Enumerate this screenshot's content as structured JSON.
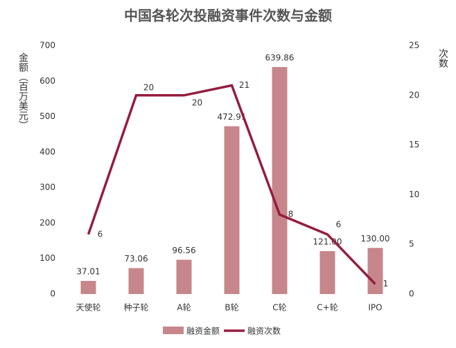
{
  "chart_data": {
    "type": "bar_line",
    "title": "中国各轮次投融资事件次数与金额",
    "y_label": "金额（百万美元）",
    "y2_label": "次数",
    "categories": [
      "天使轮",
      "种子轮",
      "A轮",
      "B轮",
      "C轮",
      "C+轮",
      "IPO"
    ],
    "series": [
      {
        "name": "融资金额",
        "type": "bar",
        "color": "#c7868b",
        "values": [
          37.01,
          73.06,
          96.56,
          472.91,
          639.86,
          121.0,
          130.0
        ],
        "value_labels": [
          "37.01",
          "73.06",
          "96.56",
          "472.91",
          "639.86",
          "121.00",
          "130.00"
        ]
      },
      {
        "name": "融资次数",
        "type": "line",
        "axis": "y2",
        "color": "#951d3f",
        "values": [
          6,
          20,
          20,
          21,
          8,
          6,
          1
        ]
      }
    ],
    "ylim": [
      0,
      700
    ],
    "yticks": [
      0,
      100,
      200,
      300,
      400,
      500,
      600,
      700
    ],
    "y2lim": [
      0,
      25
    ],
    "y2ticks": [
      0,
      5,
      10,
      15,
      20,
      25
    ],
    "legend": "bottom"
  }
}
